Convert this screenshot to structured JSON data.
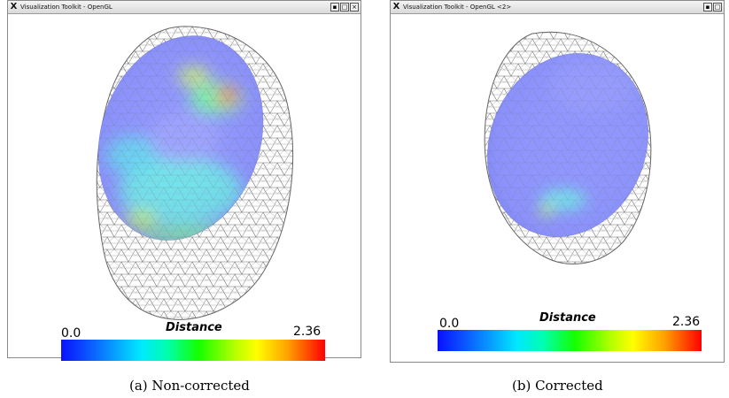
{
  "figures": [
    {
      "window_title": "Visualization Toolkit - OpenGL",
      "colorbar": {
        "title": "Distance",
        "min": "0.0",
        "max": "2.36"
      },
      "caption": "(a) Non-corrected"
    },
    {
      "window_title": "Visualization Toolkit - OpenGL <2>",
      "colorbar": {
        "title": "Distance",
        "min": "0.0",
        "max": "2.36"
      },
      "caption": "(b) Corrected"
    }
  ],
  "colors": {
    "titlebar": "#e6e6e6",
    "sphere_base": "#8f96ff",
    "wireframe": "#6d6d6d"
  }
}
